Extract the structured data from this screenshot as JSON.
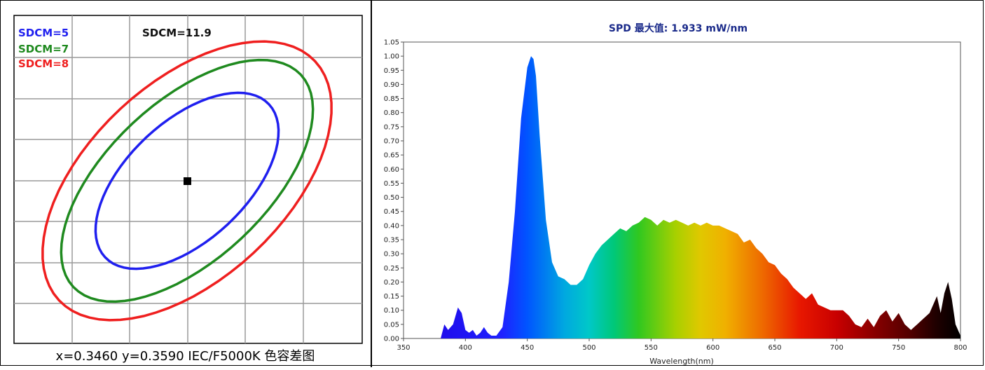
{
  "chart_data": [
    {
      "type": "scatter",
      "title": "SDCM=11.9",
      "legend": [
        {
          "name": "SDCM=5",
          "color": "#1f1fef"
        },
        {
          "name": "SDCM=7",
          "color": "#1f8a1f"
        },
        {
          "name": "SDCM=8",
          "color": "#ef1f1f"
        }
      ],
      "legend_position": "top-left",
      "grid": true,
      "point": {
        "x": 0.346,
        "y": 0.359
      },
      "caption": "x=0.3460   y=0.3590   IEC/F5000K  色容差图"
    },
    {
      "type": "area",
      "title": "SPD 最大值: 1.933 mW/nm",
      "xlabel": "Wavelength(nm)",
      "ylabel": "",
      "xlim": [
        350,
        800
      ],
      "ylim": [
        0,
        1.05
      ],
      "xticks": [
        "350",
        "400",
        "450",
        "500",
        "550",
        "600",
        "650",
        "700",
        "750",
        "800"
      ],
      "yticks": [
        "0.00",
        "0.05",
        "0.10",
        "0.15",
        "0.20",
        "0.25",
        "0.30",
        "0.35",
        "0.40",
        "0.45",
        "0.50",
        "0.55",
        "0.60",
        "0.65",
        "0.70",
        "0.75",
        "0.80",
        "0.85",
        "0.90",
        "0.95",
        "1.00",
        "1.05"
      ],
      "grid": false,
      "series": [
        {
          "x": [
            350,
            380,
            383,
            386,
            390,
            394,
            397,
            400,
            403,
            406,
            409,
            412,
            415,
            418,
            421,
            425,
            430,
            435,
            440,
            445,
            450,
            453,
            455,
            457,
            460,
            465,
            470,
            475,
            480,
            485,
            490,
            495,
            500,
            505,
            510,
            515,
            520,
            525,
            530,
            535,
            540,
            545,
            550,
            555,
            560,
            565,
            570,
            575,
            580,
            585,
            590,
            595,
            600,
            605,
            610,
            615,
            620,
            625,
            630,
            635,
            640,
            645,
            650,
            655,
            660,
            665,
            670,
            675,
            680,
            685,
            690,
            695,
            700,
            705,
            710,
            715,
            720,
            725,
            730,
            735,
            740,
            745,
            750,
            755,
            760,
            765,
            770,
            775,
            778,
            781,
            784,
            787,
            790,
            793,
            796,
            800
          ],
          "y": [
            0.0,
            0.0,
            0.05,
            0.03,
            0.05,
            0.11,
            0.09,
            0.03,
            0.02,
            0.03,
            0.01,
            0.02,
            0.04,
            0.02,
            0.01,
            0.01,
            0.04,
            0.2,
            0.45,
            0.78,
            0.96,
            1.0,
            0.99,
            0.93,
            0.72,
            0.42,
            0.27,
            0.22,
            0.21,
            0.19,
            0.19,
            0.21,
            0.26,
            0.3,
            0.33,
            0.35,
            0.37,
            0.39,
            0.38,
            0.4,
            0.41,
            0.43,
            0.42,
            0.4,
            0.42,
            0.41,
            0.42,
            0.41,
            0.4,
            0.41,
            0.4,
            0.41,
            0.4,
            0.4,
            0.39,
            0.38,
            0.37,
            0.34,
            0.35,
            0.32,
            0.3,
            0.27,
            0.26,
            0.23,
            0.21,
            0.18,
            0.16,
            0.14,
            0.16,
            0.12,
            0.11,
            0.1,
            0.1,
            0.1,
            0.08,
            0.05,
            0.04,
            0.07,
            0.04,
            0.08,
            0.1,
            0.06,
            0.09,
            0.05,
            0.03,
            0.05,
            0.07,
            0.09,
            0.12,
            0.15,
            0.09,
            0.16,
            0.2,
            0.14,
            0.05,
            0.01
          ]
        }
      ]
    }
  ]
}
